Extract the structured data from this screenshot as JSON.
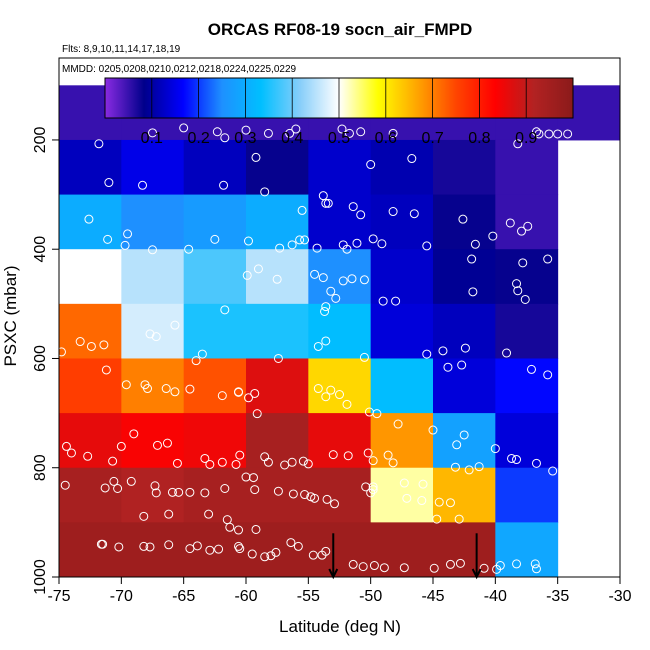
{
  "chart_data": {
    "type": "heatmap",
    "title": "ORCAS RF08-19 socn_air_FMPD",
    "flights_label": "Flts: 8,9,10,11,14,17,18,19",
    "dates_label": "MMDD: 0205,0208,0210,0212,0218,0224,0225,0229",
    "xlabel": "Latitude (deg N)",
    "ylabel": "PSXC (mbar)",
    "xlim": [
      -75,
      -30
    ],
    "ylim": [
      1000,
      50
    ],
    "x_ticks": [
      -75,
      -70,
      -65,
      -60,
      -55,
      -50,
      -45,
      -40,
      -35,
      -30
    ],
    "y_ticks": [
      200,
      400,
      600,
      800,
      1000
    ],
    "colorbar": {
      "range": [
        0,
        1
      ],
      "ticks": [
        0.1,
        0.2,
        0.3,
        0.4,
        0.5,
        0.6,
        0.7,
        0.8,
        0.9
      ],
      "stops": [
        "#8a2be2",
        "#00008b",
        "#0000ff",
        "#1e90ff",
        "#00bfff",
        "#87cefa",
        "#ffffff",
        "#ffff00",
        "#ffa500",
        "#ff4500",
        "#ff0000",
        "#b22222",
        "#8b1a1a"
      ]
    },
    "lat_bins": [
      -75,
      -70,
      -65,
      -60,
      -55,
      -50,
      -45,
      -40,
      -35,
      -30
    ],
    "pressure_bins": [
      100,
      200,
      300,
      400,
      500,
      600,
      700,
      800,
      900,
      1000
    ],
    "cells": [
      [
        0.05,
        0.05,
        0.05,
        0.05,
        0.05,
        0.05,
        0.05,
        0.05,
        0.05
      ],
      [
        0.12,
        0.15,
        0.12,
        0.08,
        0.13,
        0.11,
        0.07,
        0.05,
        null
      ],
      [
        0.3,
        0.25,
        0.27,
        0.3,
        0.13,
        0.12,
        0.08,
        0.05,
        null
      ],
      [
        0.5,
        0.45,
        0.38,
        0.45,
        0.25,
        0.13,
        0.09,
        0.08,
        null
      ],
      [
        0.72,
        0.47,
        0.35,
        0.35,
        0.33,
        0.14,
        0.12,
        0.07,
        null
      ],
      [
        0.76,
        0.7,
        0.74,
        0.87,
        0.62,
        0.33,
        0.14,
        0.17,
        null
      ],
      [
        0.86,
        0.84,
        0.85,
        0.94,
        0.86,
        0.68,
        0.28,
        0.14,
        null
      ],
      [
        0.94,
        0.92,
        0.94,
        0.94,
        0.94,
        0.53,
        0.65,
        0.2,
        null
      ],
      [
        0.96,
        0.96,
        0.96,
        0.96,
        0.96,
        0.96,
        0.96,
        0.29,
        null
      ]
    ],
    "observations": [
      [
        -71.8,
        207
      ],
      [
        -67.5,
        187
      ],
      [
        -65,
        178
      ],
      [
        -62.3,
        185
      ],
      [
        -61.7,
        196
      ],
      [
        -60,
        182
      ],
      [
        -58.2,
        188
      ],
      [
        -56.5,
        188
      ],
      [
        -56,
        180
      ],
      [
        -52.3,
        180
      ],
      [
        -51.7,
        188
      ],
      [
        -50.8,
        185
      ],
      [
        -48.2,
        188
      ],
      [
        -38.2,
        207
      ],
      [
        -36.5,
        189
      ],
      [
        -35.7,
        189
      ],
      [
        -35,
        189
      ],
      [
        -34.2,
        189
      ],
      [
        -36.7,
        185
      ],
      [
        -59.2,
        232
      ],
      [
        -46.7,
        234
      ],
      [
        -50,
        245
      ],
      [
        -71,
        278
      ],
      [
        -68.3,
        283
      ],
      [
        -58.5,
        295
      ],
      [
        -61.8,
        283
      ],
      [
        -53.8,
        302
      ],
      [
        -53.6,
        316
      ],
      [
        -53.4,
        316
      ],
      [
        -55.5,
        329
      ],
      [
        -51.4,
        322
      ],
      [
        -50.8,
        337
      ],
      [
        -46.5,
        335
      ],
      [
        -48.2,
        331
      ],
      [
        -42.6,
        345
      ],
      [
        -38.8,
        352
      ],
      [
        -37.4,
        358
      ],
      [
        -37.9,
        367
      ],
      [
        -40.2,
        376
      ],
      [
        -72.6,
        345
      ],
      [
        -71.1,
        382
      ],
      [
        -69.7,
        393
      ],
      [
        -69.5,
        372
      ],
      [
        -67.5,
        401
      ],
      [
        -64.6,
        400
      ],
      [
        -62.5,
        382
      ],
      [
        -59.8,
        385
      ],
      [
        -57.3,
        398
      ],
      [
        -56.3,
        392
      ],
      [
        -55.7,
        383
      ],
      [
        -55.3,
        383
      ],
      [
        -52.2,
        392
      ],
      [
        -51.9,
        400
      ],
      [
        -51.1,
        389
      ],
      [
        -49.1,
        390
      ],
      [
        -49.8,
        381
      ],
      [
        -54.3,
        398
      ],
      [
        -45.5,
        394
      ],
      [
        -41.6,
        391
      ],
      [
        -41.9,
        418
      ],
      [
        -37.8,
        425
      ],
      [
        -35.8,
        418
      ],
      [
        -73.5,
        432
      ],
      [
        -72.4,
        451
      ],
      [
        -59,
        436
      ],
      [
        -59.9,
        448
      ],
      [
        -57.5,
        455
      ],
      [
        -54.5,
        446
      ],
      [
        -51.5,
        454
      ],
      [
        -50.5,
        456
      ],
      [
        -53.8,
        452
      ],
      [
        -53.2,
        477
      ],
      [
        -52.2,
        458
      ],
      [
        -38.3,
        463
      ],
      [
        -38.2,
        476
      ],
      [
        -41.8,
        478
      ],
      [
        -37.6,
        492
      ],
      [
        -48,
        495
      ],
      [
        -49,
        495
      ],
      [
        -52.8,
        490
      ],
      [
        -53.6,
        505
      ],
      [
        -53.7,
        514
      ],
      [
        -53.6,
        568
      ],
      [
        -54.2,
        578
      ],
      [
        -61.7,
        511
      ],
      [
        -65.7,
        539
      ],
      [
        -67.7,
        555
      ],
      [
        -67.2,
        560
      ],
      [
        -73.3,
        569
      ],
      [
        -74.8,
        588
      ],
      [
        -72.4,
        578
      ],
      [
        -71.4,
        575
      ],
      [
        -63.5,
        592
      ],
      [
        -64,
        604
      ],
      [
        -57.4,
        600
      ],
      [
        -50.5,
        598
      ],
      [
        -45.5,
        592
      ],
      [
        -39.1,
        590
      ],
      [
        -42.4,
        581
      ],
      [
        -44.2,
        586
      ],
      [
        -42.7,
        612
      ],
      [
        -43.8,
        616
      ],
      [
        -37.1,
        620
      ],
      [
        -35.8,
        630
      ],
      [
        -71.2,
        621
      ],
      [
        -69.6,
        648
      ],
      [
        -68.1,
        648
      ],
      [
        -67.9,
        655
      ],
      [
        -66.4,
        655
      ],
      [
        -65.7,
        661
      ],
      [
        -64.5,
        656
      ],
      [
        -61.9,
        668
      ],
      [
        -60.6,
        662
      ],
      [
        -59.3,
        664
      ],
      [
        -60.6,
        661
      ],
      [
        -59.8,
        672
      ],
      [
        -59.1,
        701
      ],
      [
        -53.2,
        658
      ],
      [
        -54.2,
        655
      ],
      [
        -53.6,
        670
      ],
      [
        -52.5,
        666
      ],
      [
        -51.9,
        684
      ],
      [
        -50.1,
        698
      ],
      [
        -49.5,
        701
      ],
      [
        -47.8,
        720
      ],
      [
        -45,
        731
      ],
      [
        -42.5,
        740
      ],
      [
        -43.1,
        758
      ],
      [
        -40,
        765
      ],
      [
        -38.7,
        783
      ],
      [
        -38.3,
        785
      ],
      [
        -36.7,
        792
      ],
      [
        -35.4,
        806
      ],
      [
        -74.4,
        761
      ],
      [
        -74,
        773
      ],
      [
        -72.7,
        779
      ],
      [
        -70.7,
        788
      ],
      [
        -70,
        761
      ],
      [
        -69,
        738
      ],
      [
        -67.1,
        759
      ],
      [
        -66.3,
        755
      ],
      [
        -65.5,
        792
      ],
      [
        -63.3,
        783
      ],
      [
        -62.9,
        794
      ],
      [
        -61.9,
        790
      ],
      [
        -60.8,
        794
      ],
      [
        -60.5,
        777
      ],
      [
        -58.5,
        780
      ],
      [
        -58.2,
        790
      ],
      [
        -56.9,
        795
      ],
      [
        -56.3,
        790
      ],
      [
        -55.4,
        788
      ],
      [
        -55,
        793
      ],
      [
        -53,
        776
      ],
      [
        -51.8,
        778
      ],
      [
        -50.2,
        773
      ],
      [
        -49.8,
        787
      ],
      [
        -48.6,
        777
      ],
      [
        -48.2,
        791
      ],
      [
        -43.2,
        799
      ],
      [
        -42.1,
        804
      ],
      [
        -41.3,
        798
      ],
      [
        -74.5,
        832
      ],
      [
        -71.3,
        837
      ],
      [
        -70.3,
        838
      ],
      [
        -70.6,
        825
      ],
      [
        -69.2,
        825
      ],
      [
        -67.3,
        833
      ],
      [
        -67.2,
        846
      ],
      [
        -65.9,
        845
      ],
      [
        -65.4,
        845
      ],
      [
        -64.5,
        845
      ],
      [
        -63.3,
        846
      ],
      [
        -61.7,
        838
      ],
      [
        -60,
        817
      ],
      [
        -59.4,
        818
      ],
      [
        -59.3,
        840
      ],
      [
        -57.4,
        843
      ],
      [
        -56.2,
        848
      ],
      [
        -55.3,
        849
      ],
      [
        -54.8,
        853
      ],
      [
        -54.5,
        856
      ],
      [
        -53.5,
        858
      ],
      [
        -52.9,
        866
      ],
      [
        -50,
        846
      ],
      [
        -50.4,
        835
      ],
      [
        -49.8,
        840
      ],
      [
        -47.3,
        828
      ],
      [
        -45.8,
        830
      ],
      [
        -49.8,
        835
      ],
      [
        -47.1,
        856
      ],
      [
        -45.9,
        860
      ],
      [
        -44.5,
        863
      ],
      [
        -43.6,
        864
      ],
      [
        -44.7,
        894
      ],
      [
        -42.9,
        894
      ],
      [
        -68.2,
        889
      ],
      [
        -66.2,
        885
      ],
      [
        -63,
        885
      ],
      [
        -61.5,
        895
      ],
      [
        -61.3,
        909
      ],
      [
        -59.2,
        913
      ],
      [
        -60.6,
        914
      ],
      [
        -71.5,
        940
      ],
      [
        -71.6,
        940
      ],
      [
        -70.2,
        945
      ],
      [
        -68.2,
        944
      ],
      [
        -67.7,
        945
      ],
      [
        -66.2,
        941
      ],
      [
        -64.5,
        948
      ],
      [
        -63.9,
        943
      ],
      [
        -62.9,
        951
      ],
      [
        -62.2,
        949
      ],
      [
        -60.6,
        944
      ],
      [
        -60.5,
        948
      ],
      [
        -59.5,
        958
      ],
      [
        -58.5,
        963
      ],
      [
        -58,
        961
      ],
      [
        -57.6,
        955
      ],
      [
        -56.4,
        937
      ],
      [
        -55.8,
        944
      ],
      [
        -54.6,
        960
      ],
      [
        -53.6,
        953
      ],
      [
        -53.9,
        960
      ],
      [
        -51.4,
        977
      ],
      [
        -50.6,
        981
      ],
      [
        -49.7,
        979
      ],
      [
        -48.9,
        983
      ],
      [
        -47.3,
        983
      ],
      [
        -44.9,
        984
      ],
      [
        -43.6,
        977
      ],
      [
        -42.8,
        975
      ],
      [
        -40.9,
        984
      ],
      [
        -39.9,
        986
      ],
      [
        -39.6,
        979
      ],
      [
        -38.3,
        976
      ],
      [
        -36.8,
        976
      ],
      [
        -36.7,
        985
      ]
    ],
    "arrows": [
      {
        "lat": -53,
        "p_top": 920,
        "p_bottom": 1000
      },
      {
        "lat": -41.5,
        "p_top": 920,
        "p_bottom": 1000
      }
    ]
  }
}
